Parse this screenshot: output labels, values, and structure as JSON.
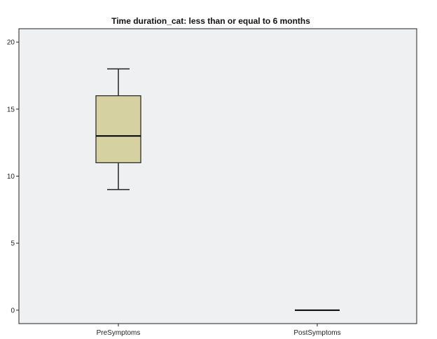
{
  "chart_data": {
    "type": "boxplot",
    "title": "Time duration_cat: less than or equal to 6 months",
    "xlabel": "",
    "ylabel": "",
    "ylim": [
      -1,
      21
    ],
    "yticks": [
      0,
      5,
      10,
      15,
      20
    ],
    "categories": [
      "PreSymptoms",
      "PostSymptoms"
    ],
    "boxes": [
      {
        "category": "PreSymptoms",
        "min": 9,
        "q1": 11,
        "median": 13,
        "q3": 16,
        "max": 18
      },
      {
        "category": "PostSymptoms",
        "min": 0,
        "q1": 0,
        "median": 0,
        "q3": 0,
        "max": 0
      }
    ],
    "grid": false,
    "legend": "none"
  },
  "colors": {
    "plot_background": "#eff0f2",
    "box_fill": "#d5d1a0",
    "axis": "#222222",
    "median": "#000000"
  }
}
